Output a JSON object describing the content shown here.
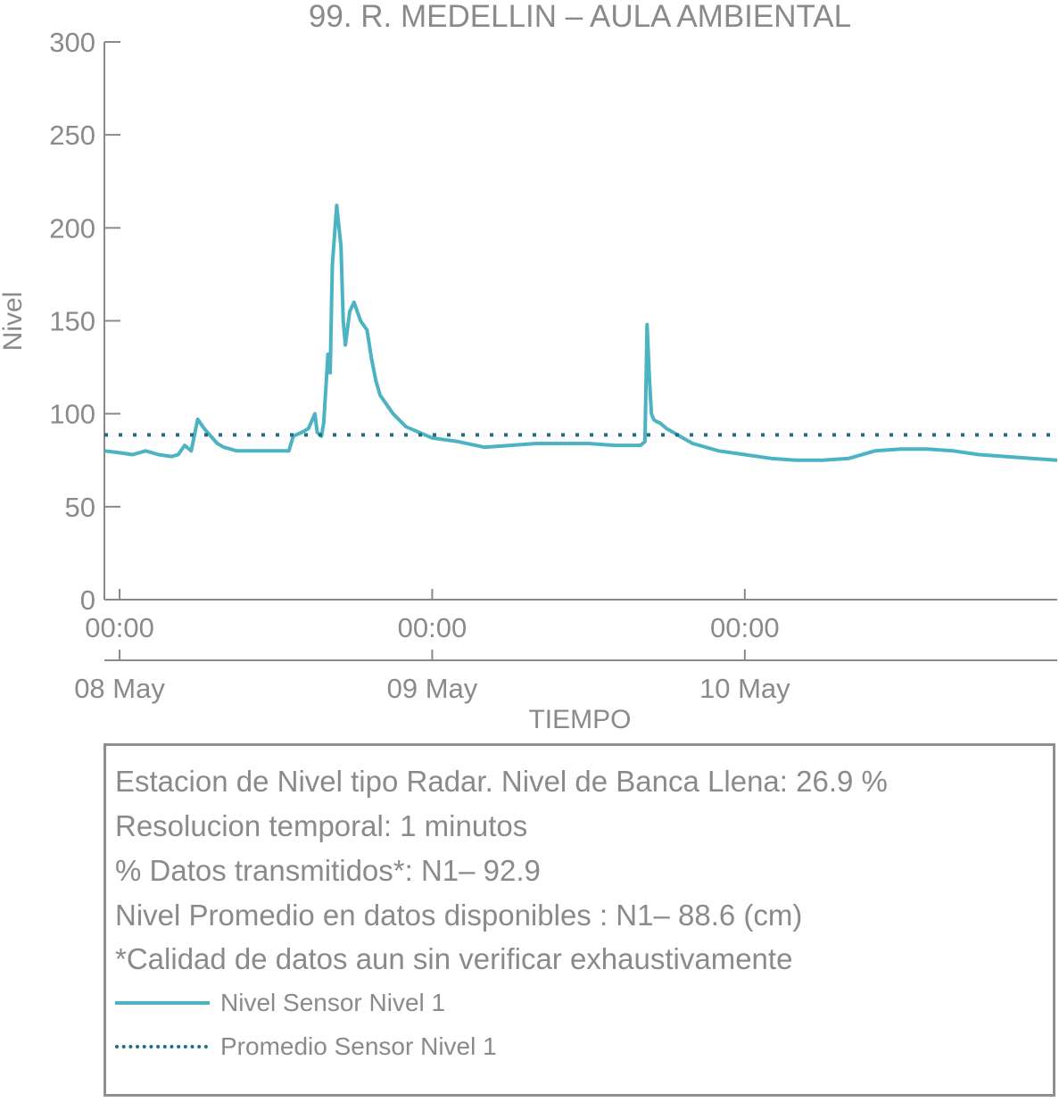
{
  "chart_data": {
    "type": "line",
    "title": "99. R. MEDELLIN – AULA AMBIENTAL",
    "xlabel": "TIEMPO",
    "ylabel": "Nivel",
    "ylim": [
      0,
      300
    ],
    "yticks": [
      "0",
      "50",
      "100",
      "150",
      "200",
      "250",
      "300"
    ],
    "xlim": [
      "2024-05-07 22:50",
      "2024-05-10 23:59"
    ],
    "xticks": [
      {
        "time": "00:00",
        "day": "08 May"
      },
      {
        "time": "00:00",
        "day": "09 May"
      },
      {
        "time": "00:00",
        "day": "10 May"
      }
    ],
    "grid": false,
    "series": [
      {
        "name": "Nivel Sensor Nivel 1",
        "style": "solid",
        "color": "#4bb3c2",
        "x": [
          "2024-05-07 22:50",
          "2024-05-08 00:00",
          "2024-05-08 01:00",
          "2024-05-08 02:00",
          "2024-05-08 03:00",
          "2024-05-08 04:00",
          "2024-05-08 04:30",
          "2024-05-08 05:00",
          "2024-05-08 05:30",
          "2024-05-08 06:00",
          "2024-05-08 06:30",
          "2024-05-08 07:00",
          "2024-05-08 07:30",
          "2024-05-08 08:00",
          "2024-05-08 09:00",
          "2024-05-08 10:00",
          "2024-05-08 11:00",
          "2024-05-08 12:00",
          "2024-05-08 13:00",
          "2024-05-08 13:20",
          "2024-05-08 14:00",
          "2024-05-08 14:30",
          "2024-05-08 15:00",
          "2024-05-08 15:10",
          "2024-05-08 15:30",
          "2024-05-08 15:40",
          "2024-05-08 16:00",
          "2024-05-08 16:10",
          "2024-05-08 16:20",
          "2024-05-08 16:40",
          "2024-05-08 17:00",
          "2024-05-08 17:10",
          "2024-05-08 17:20",
          "2024-05-08 17:40",
          "2024-05-08 18:00",
          "2024-05-08 18:30",
          "2024-05-08 19:00",
          "2024-05-08 19:20",
          "2024-05-08 19:40",
          "2024-05-08 20:00",
          "2024-05-08 21:00",
          "2024-05-08 22:00",
          "2024-05-09 00:00",
          "2024-05-09 02:00",
          "2024-05-09 04:00",
          "2024-05-09 06:00",
          "2024-05-09 08:00",
          "2024-05-09 10:00",
          "2024-05-09 12:00",
          "2024-05-09 14:00",
          "2024-05-09 16:00",
          "2024-05-09 16:20",
          "2024-05-09 16:30",
          "2024-05-09 16:40",
          "2024-05-09 16:50",
          "2024-05-09 17:00",
          "2024-05-09 17:10",
          "2024-05-09 17:30",
          "2024-05-09 18:00",
          "2024-05-09 19:00",
          "2024-05-09 20:00",
          "2024-05-09 22:00",
          "2024-05-10 00:00",
          "2024-05-10 02:00",
          "2024-05-10 04:00",
          "2024-05-10 06:00",
          "2024-05-10 08:00",
          "2024-05-10 10:00",
          "2024-05-10 12:00",
          "2024-05-10 14:00",
          "2024-05-10 16:00",
          "2024-05-10 18:00",
          "2024-05-10 20:00",
          "2024-05-10 22:00",
          "2024-05-10 23:59"
        ],
        "values": [
          80,
          79,
          78,
          80,
          78,
          77,
          78,
          83,
          80,
          97,
          92,
          88,
          84,
          82,
          80,
          80,
          80,
          80,
          80,
          88,
          90,
          92,
          100,
          90,
          88,
          95,
          132,
          122,
          180,
          212,
          190,
          150,
          137,
          155,
          160,
          150,
          145,
          130,
          118,
          110,
          100,
          93,
          87,
          85,
          82,
          83,
          84,
          84,
          84,
          83,
          83,
          85,
          148,
          120,
          100,
          97,
          96,
          95,
          92,
          88,
          84,
          80,
          78,
          76,
          75,
          75,
          76,
          80,
          81,
          81,
          80,
          78,
          77,
          76,
          75
        ]
      },
      {
        "name": "Promedio Sensor Nivel 1",
        "style": "dotted",
        "color": "#1f6e86",
        "x": [
          "2024-05-07 22:50",
          "2024-05-10 23:59"
        ],
        "values": [
          88.6,
          88.6
        ]
      }
    ]
  },
  "info": {
    "lines": [
      "Estacion de Nivel tipo Radar. Nivel de Banca Llena: 26.9 %",
      "Resolucion temporal: 1 minutos",
      "% Datos transmitidos*: N1– 92.9",
      "Nivel Promedio en datos disponibles : N1– 88.6 (cm)",
      "*Calidad de datos aun sin verificar exhaustivamente"
    ],
    "legend": [
      {
        "label": "Nivel Sensor Nivel 1"
      },
      {
        "label": "Promedio Sensor Nivel 1"
      }
    ]
  }
}
